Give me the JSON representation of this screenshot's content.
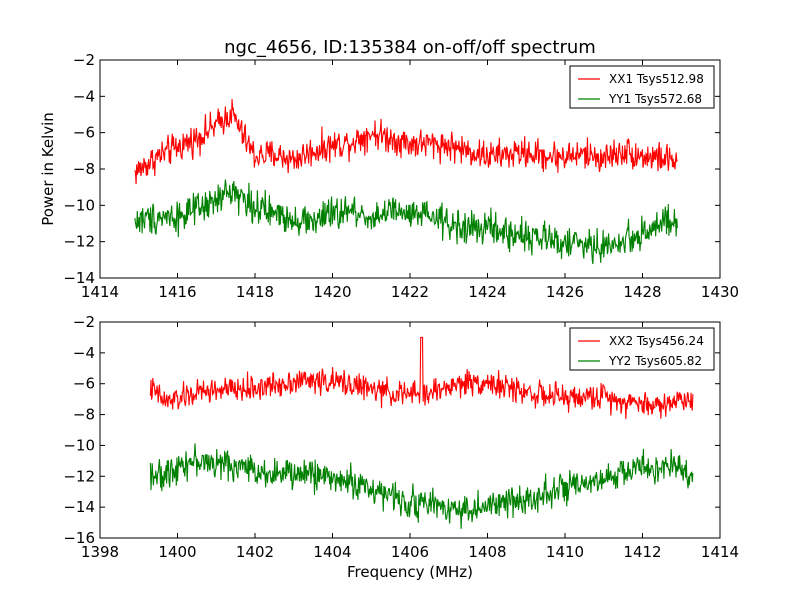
{
  "chart_data": [
    {
      "type": "line",
      "title": "ngc_4656, ID:135384 on-off/off spectrum",
      "xlabel": "",
      "ylabel": "Power in Kelvin",
      "xlim": [
        1414,
        1430
      ],
      "ylim": [
        -14,
        -2
      ],
      "xticks": [
        1414,
        1416,
        1418,
        1420,
        1422,
        1424,
        1426,
        1428,
        1430
      ],
      "yticks": [
        -14,
        -12,
        -10,
        -8,
        -6,
        -4,
        -2
      ],
      "grid": false,
      "legend_position": "top-right",
      "x_range": [
        1414.9,
        1428.9
      ],
      "series": [
        {
          "name": "XX1 Tsys512.98",
          "color": "#ff0000",
          "profile": [
            [
              1414.9,
              -8.2
            ],
            [
              1415.5,
              -7.3
            ],
            [
              1416.0,
              -6.8
            ],
            [
              1416.5,
              -6.3
            ],
            [
              1417.0,
              -5.6
            ],
            [
              1417.4,
              -4.9
            ],
            [
              1417.7,
              -6.2
            ],
            [
              1418.0,
              -7.3
            ],
            [
              1418.5,
              -7.2
            ],
            [
              1419.0,
              -7.5
            ],
            [
              1419.5,
              -7.0
            ],
            [
              1420.0,
              -6.7
            ],
            [
              1420.5,
              -6.5
            ],
            [
              1421.0,
              -6.0
            ],
            [
              1421.5,
              -6.3
            ],
            [
              1422.0,
              -6.6
            ],
            [
              1422.5,
              -6.6
            ],
            [
              1423.0,
              -6.7
            ],
            [
              1423.5,
              -7.0
            ],
            [
              1424.0,
              -7.3
            ],
            [
              1424.5,
              -7.2
            ],
            [
              1425.0,
              -7.1
            ],
            [
              1425.5,
              -7.3
            ],
            [
              1426.0,
              -7.3
            ],
            [
              1426.5,
              -7.2
            ],
            [
              1427.0,
              -7.4
            ],
            [
              1427.5,
              -7.0
            ],
            [
              1428.0,
              -7.3
            ],
            [
              1428.5,
              -7.4
            ],
            [
              1428.9,
              -7.6
            ]
          ],
          "noise": 0.55
        },
        {
          "name": "YY1 Tsys572.68",
          "color": "#008000",
          "profile": [
            [
              1414.9,
              -10.9
            ],
            [
              1415.5,
              -10.6
            ],
            [
              1416.0,
              -10.6
            ],
            [
              1416.5,
              -10.3
            ],
            [
              1417.0,
              -9.8
            ],
            [
              1417.4,
              -9.1
            ],
            [
              1417.8,
              -9.8
            ],
            [
              1418.2,
              -10.3
            ],
            [
              1418.8,
              -10.6
            ],
            [
              1419.4,
              -10.9
            ],
            [
              1420.0,
              -10.5
            ],
            [
              1420.5,
              -10.3
            ],
            [
              1421.0,
              -10.7
            ],
            [
              1421.5,
              -10.3
            ],
            [
              1422.0,
              -10.6
            ],
            [
              1422.5,
              -10.6
            ],
            [
              1423.0,
              -11.0
            ],
            [
              1423.5,
              -11.3
            ],
            [
              1424.0,
              -11.2
            ],
            [
              1424.5,
              -11.6
            ],
            [
              1425.0,
              -11.6
            ],
            [
              1425.5,
              -11.9
            ],
            [
              1426.0,
              -12.0
            ],
            [
              1426.5,
              -12.2
            ],
            [
              1427.0,
              -12.3
            ],
            [
              1427.5,
              -12.0
            ],
            [
              1428.0,
              -11.5
            ],
            [
              1428.5,
              -11.0
            ],
            [
              1428.9,
              -11.1
            ]
          ],
          "noise": 0.6
        }
      ]
    },
    {
      "type": "line",
      "title": "",
      "xlabel": "Frequency (MHz)",
      "ylabel": "",
      "xlim": [
        1398,
        1414
      ],
      "ylim": [
        -16,
        -2
      ],
      "xticks": [
        1398,
        1400,
        1402,
        1404,
        1406,
        1408,
        1410,
        1412,
        1414
      ],
      "yticks": [
        -16,
        -14,
        -12,
        -10,
        -8,
        -6,
        -4,
        -2
      ],
      "grid": false,
      "legend_position": "top-right",
      "x_range": [
        1399.3,
        1413.3
      ],
      "series": [
        {
          "name": "XX2 Tsys456.24",
          "color": "#ff0000",
          "profile": [
            [
              1399.3,
              -6.3
            ],
            [
              1399.7,
              -7.2
            ],
            [
              1400.0,
              -7.0
            ],
            [
              1400.5,
              -6.6
            ],
            [
              1401.0,
              -6.4
            ],
            [
              1401.5,
              -6.4
            ],
            [
              1402.0,
              -6.3
            ],
            [
              1402.5,
              -6.1
            ],
            [
              1403.0,
              -5.8
            ],
            [
              1403.5,
              -5.8
            ],
            [
              1404.0,
              -5.9
            ],
            [
              1404.5,
              -6.0
            ],
            [
              1405.0,
              -6.4
            ],
            [
              1405.5,
              -6.6
            ],
            [
              1406.0,
              -6.7
            ],
            [
              1406.5,
              -6.6
            ],
            [
              1407.0,
              -6.2
            ],
            [
              1407.5,
              -5.9
            ],
            [
              1408.0,
              -5.9
            ],
            [
              1408.5,
              -6.3
            ],
            [
              1409.0,
              -6.5
            ],
            [
              1409.5,
              -6.8
            ],
            [
              1410.0,
              -6.9
            ],
            [
              1410.5,
              -6.9
            ],
            [
              1411.0,
              -6.8
            ],
            [
              1411.5,
              -7.1
            ],
            [
              1412.0,
              -7.3
            ],
            [
              1412.5,
              -7.4
            ],
            [
              1413.0,
              -7.0
            ],
            [
              1413.3,
              -7.0
            ]
          ],
          "noise": 0.55,
          "peak": [
            1406.3,
            -3.0
          ]
        },
        {
          "name": "YY2 Tsys605.82",
          "color": "#008000",
          "profile": [
            [
              1399.3,
              -11.6
            ],
            [
              1399.6,
              -12.2
            ],
            [
              1400.0,
              -11.2
            ],
            [
              1400.5,
              -11.0
            ],
            [
              1401.0,
              -11.2
            ],
            [
              1401.5,
              -11.3
            ],
            [
              1402.0,
              -11.6
            ],
            [
              1402.5,
              -11.8
            ],
            [
              1403.0,
              -11.9
            ],
            [
              1403.5,
              -11.8
            ],
            [
              1404.0,
              -12.1
            ],
            [
              1404.5,
              -12.4
            ],
            [
              1405.0,
              -12.8
            ],
            [
              1405.5,
              -13.3
            ],
            [
              1406.0,
              -13.7
            ],
            [
              1406.5,
              -13.8
            ],
            [
              1407.0,
              -14.0
            ],
            [
              1407.5,
              -14.2
            ],
            [
              1408.0,
              -14.0
            ],
            [
              1408.5,
              -13.7
            ],
            [
              1409.0,
              -13.5
            ],
            [
              1409.5,
              -13.0
            ],
            [
              1410.0,
              -12.8
            ],
            [
              1410.5,
              -12.7
            ],
            [
              1411.0,
              -12.3
            ],
            [
              1411.5,
              -11.7
            ],
            [
              1412.0,
              -11.4
            ],
            [
              1412.5,
              -11.5
            ],
            [
              1413.0,
              -11.5
            ],
            [
              1413.3,
              -11.9
            ]
          ],
          "noise": 0.65
        }
      ]
    }
  ]
}
